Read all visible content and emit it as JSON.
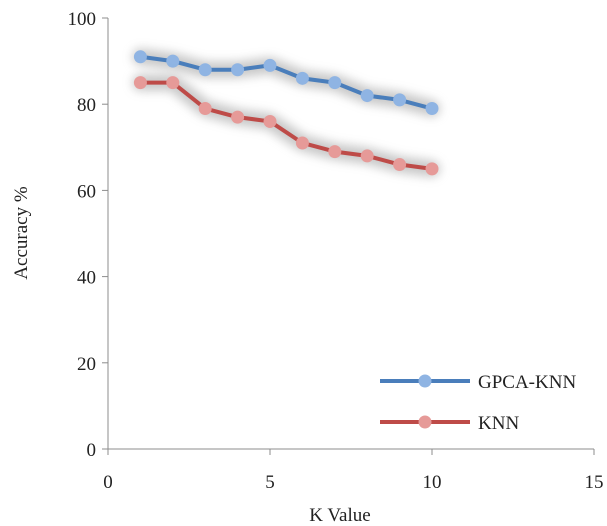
{
  "chart_data": {
    "type": "line",
    "xlabel": "K Value",
    "ylabel": "Accuracy %",
    "xlim": [
      0,
      15
    ],
    "ylim": [
      0,
      100
    ],
    "xticks": [
      0,
      5,
      10,
      15
    ],
    "yticks": [
      0,
      20,
      40,
      60,
      80,
      100
    ],
    "grid": false,
    "legend_position": "bottom-right",
    "series": [
      {
        "name": "GPCA-KNN",
        "color": "#4a7ebb",
        "marker_color": "#8fb4e3",
        "x": [
          1,
          2,
          3,
          4,
          5,
          6,
          7,
          8,
          9,
          10
        ],
        "y": [
          91,
          90,
          88,
          88,
          89,
          86,
          85,
          82,
          81,
          79
        ]
      },
      {
        "name": "KNN",
        "color": "#be4b48",
        "marker_color": "#e69a98",
        "x": [
          1,
          2,
          3,
          4,
          5,
          6,
          7,
          8,
          9,
          10
        ],
        "y": [
          85,
          85,
          79,
          77,
          76,
          71,
          69,
          68,
          66,
          65
        ]
      }
    ]
  }
}
